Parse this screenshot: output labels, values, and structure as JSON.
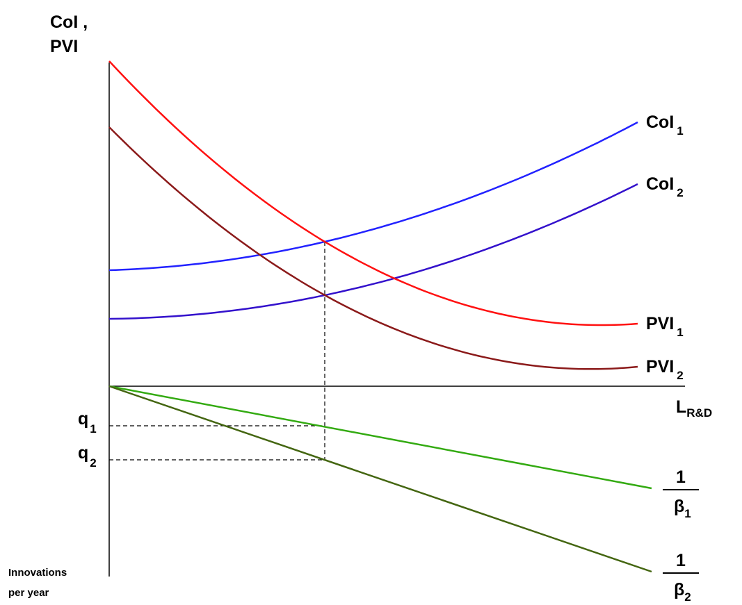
{
  "chart_data": {
    "type": "line",
    "y_axis_label": [
      "CoI ,",
      "PVI"
    ],
    "x_axis_label": {
      "main": "L",
      "sub": "R&D"
    },
    "lower_y_axis_label": [
      "Innovations",
      "per year"
    ],
    "series": [
      {
        "name": "CoI",
        "subscript": "1",
        "color": "#2222ff",
        "shape": "rising-convex",
        "points": [
          [
            0,
            167
          ],
          [
            3.1,
            208
          ],
          [
            7.6,
            380
          ]
        ]
      },
      {
        "name": "CoI",
        "subscript": "2",
        "color": "#3311cc",
        "shape": "rising-convex",
        "points": [
          [
            0,
            97
          ],
          [
            3.1,
            131
          ],
          [
            7.6,
            291
          ]
        ]
      },
      {
        "name": "PVI",
        "subscript": "1",
        "color": "#ff1111",
        "shape": "falling-convex",
        "points": [
          [
            0,
            468
          ],
          [
            3.1,
            208
          ],
          [
            7.6,
            90
          ]
        ]
      },
      {
        "name": "PVI",
        "subscript": "2",
        "color": "#8b1a1a",
        "shape": "falling-convex",
        "points": [
          [
            0,
            373
          ],
          [
            3.1,
            131
          ],
          [
            7.6,
            28
          ]
        ]
      },
      {
        "name": "1/β",
        "numerator": "1",
        "denominator": "β",
        "subscript": "1",
        "color": "#33aa11",
        "shape": "linear",
        "points": [
          [
            0,
            0
          ],
          [
            3.1,
            -57
          ],
          [
            7.8,
            -147
          ]
        ]
      },
      {
        "name": "1/β",
        "numerator": "1",
        "denominator": "β",
        "subscript": "2",
        "color": "#446611",
        "shape": "linear",
        "points": [
          [
            0,
            0
          ],
          [
            3.1,
            -106
          ],
          [
            7.8,
            -267
          ]
        ]
      }
    ],
    "markers": [
      {
        "label": "q",
        "subscript": "1",
        "x": 3.1,
        "y": -57
      },
      {
        "label": "q",
        "subscript": "2",
        "x": 3.1,
        "y": -106
      }
    ],
    "vertical_guide_x": 3.1,
    "grid": false,
    "legend": "none (direct labels at right end of each curve)"
  }
}
